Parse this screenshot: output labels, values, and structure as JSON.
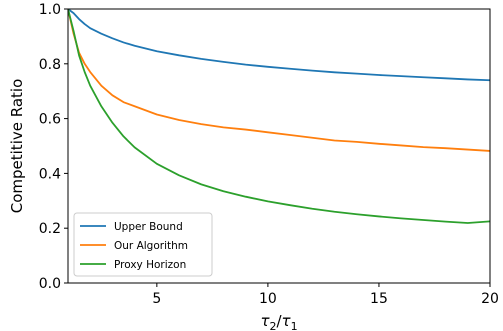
{
  "chart_data": {
    "type": "line",
    "xlabel": "τ2/τ1",
    "xlabel_parts": {
      "tau": "τ",
      "num_sub": "2",
      "slash": "/",
      "den_sub": "1"
    },
    "ylabel": "Competitive Ratio",
    "xlim": [
      1,
      20
    ],
    "ylim": [
      0,
      1
    ],
    "xticks": [
      5,
      10,
      15,
      20
    ],
    "xtick_labels": [
      "5",
      "10",
      "15",
      "20"
    ],
    "yticks": [
      0.0,
      0.2,
      0.4,
      0.6,
      0.8,
      1.0
    ],
    "ytick_labels": [
      "0.0",
      "0.2",
      "0.4",
      "0.6",
      "0.8",
      "1.0"
    ],
    "grid": false,
    "legend_position": "bottom-left",
    "series": [
      {
        "name": "Upper Bound",
        "color": "#1f77b4",
        "x": [
          1,
          1.25,
          1.5,
          1.75,
          2,
          2.5,
          3,
          3.5,
          4,
          5,
          6,
          7,
          8,
          9,
          10,
          11,
          12,
          13,
          14,
          15,
          16,
          17,
          18,
          19,
          20
        ],
        "y": [
          1.0,
          0.985,
          0.963,
          0.945,
          0.93,
          0.91,
          0.893,
          0.878,
          0.866,
          0.846,
          0.831,
          0.818,
          0.807,
          0.797,
          0.789,
          0.782,
          0.775,
          0.769,
          0.764,
          0.759,
          0.755,
          0.751,
          0.747,
          0.743,
          0.74
        ]
      },
      {
        "name": "Our Algorithm",
        "color": "#ff7f0e",
        "x": [
          1,
          1.25,
          1.5,
          1.75,
          2,
          2.5,
          3,
          3.5,
          4,
          5,
          6,
          7,
          8,
          9,
          10,
          11,
          12,
          13,
          14,
          15,
          16,
          17,
          18,
          19,
          20
        ],
        "y": [
          1.0,
          0.91,
          0.84,
          0.8,
          0.77,
          0.72,
          0.685,
          0.66,
          0.645,
          0.615,
          0.595,
          0.58,
          0.568,
          0.56,
          0.55,
          0.54,
          0.53,
          0.52,
          0.515,
          0.508,
          0.502,
          0.496,
          0.492,
          0.487,
          0.482
        ]
      },
      {
        "name": "Proxy Horizon",
        "color": "#2ca02c",
        "x": [
          1,
          1.25,
          1.5,
          1.75,
          2,
          2.5,
          3,
          3.5,
          4,
          5,
          6,
          7,
          8,
          9,
          10,
          11,
          12,
          13,
          14,
          15,
          16,
          17,
          18,
          19,
          20
        ],
        "y": [
          1.0,
          0.92,
          0.83,
          0.77,
          0.72,
          0.645,
          0.585,
          0.535,
          0.495,
          0.435,
          0.393,
          0.36,
          0.335,
          0.315,
          0.298,
          0.284,
          0.271,
          0.26,
          0.251,
          0.243,
          0.236,
          0.23,
          0.224,
          0.219,
          0.225
        ]
      }
    ]
  }
}
